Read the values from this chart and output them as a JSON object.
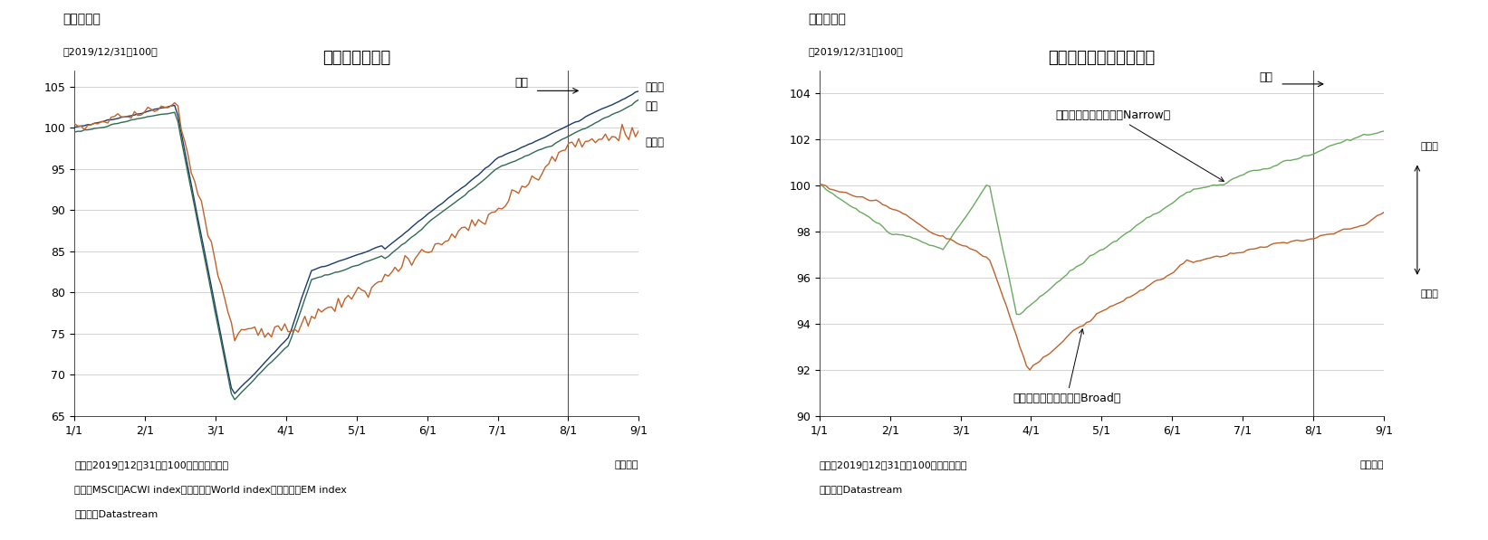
{
  "chart1": {
    "title": "世界株価の動向",
    "subtitle": "（図表１）",
    "ylabel_note": "（2019/12/31＝100）",
    "ylim": [
      65,
      107
    ],
    "yticks": [
      65,
      70,
      75,
      80,
      85,
      90,
      95,
      100,
      105
    ],
    "note1": "（注）2019年12月31日＝100として指数化。",
    "note2": "世界はMSCIのACWI index、先進国はWorld index、新興国はEM index",
    "note3": "（資料）Datastream",
    "footer": "（日次）",
    "vline_label": "８月",
    "labels": [
      "先進国",
      "世界",
      "新興国"
    ],
    "colors": [
      "#1a3a6b",
      "#2e6b4f",
      "#c0622a"
    ]
  },
  "chart2": {
    "title": "対ドル為替レートの動向",
    "subtitle": "（図表２）",
    "ylabel_note": "（2019/12/31＝100）",
    "ylim": [
      90,
      105
    ],
    "yticks": [
      90,
      92,
      94,
      96,
      98,
      100,
      102,
      104
    ],
    "note1": "（注）2019年12月31日＝100として指数化",
    "note2": "（資料）Datastream",
    "footer": "（日次）",
    "vline_label": "８月",
    "labels": [
      "名目実効為替レート（Narrow）",
      "名目実効為替レート（Broad）"
    ],
    "colors": [
      "#6aaa5f",
      "#c0622a"
    ],
    "dollar_high": "ドル高",
    "dollar_low": "ドル安"
  },
  "xtick_labels": [
    "1/1",
    "2/1",
    "3/1",
    "4/1",
    "5/1",
    "6/1",
    "7/1",
    "8/1",
    "9/1"
  ],
  "background_color": "#ffffff"
}
